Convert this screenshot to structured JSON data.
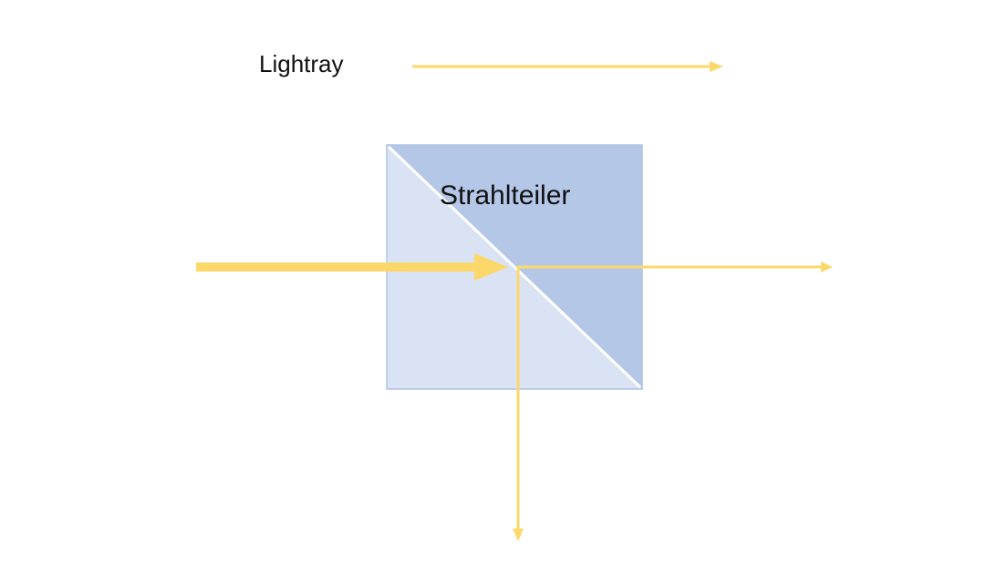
{
  "legend": {
    "label": "Lightray"
  },
  "beamsplitter": {
    "label": "Strahlteiler"
  },
  "colors": {
    "ray": "#FCD86A",
    "cube_light": "#DAE3F3",
    "cube_dark": "#B4C7E7",
    "cube_border": "#AFC3E6",
    "diagonal": "#FFFFFF"
  }
}
